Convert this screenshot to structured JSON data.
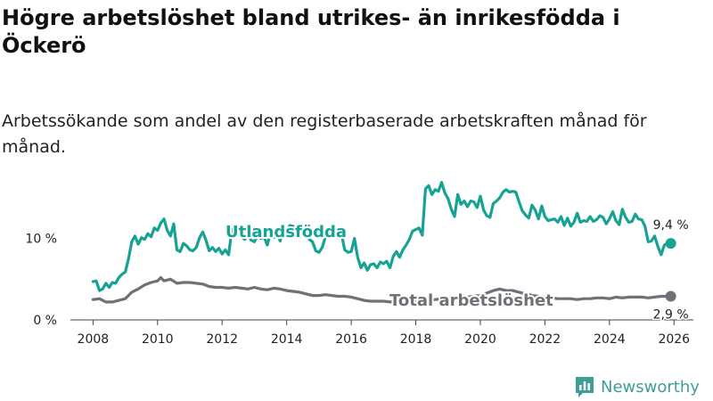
{
  "chart_data": {
    "type": "line",
    "title": "Högre arbetslöshet bland utrikes- än inrikesfödda i Öckerö",
    "subtitle": "Arbetssökande som andel av den registerbaserade arbetskraften månad för månad.",
    "x_ticks": [
      "2008",
      "2010",
      "2012",
      "2014",
      "2016",
      "2018",
      "2020",
      "2022",
      "2024",
      "2026"
    ],
    "y_ticks": [
      "0 %",
      "10 %"
    ],
    "xlim": [
      2007.3,
      2026.6
    ],
    "ylim": [
      0,
      18.5
    ],
    "grid": false,
    "series": [
      {
        "name": "Utlandsfödda",
        "label": "Utlandsfödda",
        "end_label": "9,4 %",
        "color": "#16a394",
        "points": [
          [
            2008.0,
            4.7
          ],
          [
            2008.1,
            4.8
          ],
          [
            2008.2,
            3.6
          ],
          [
            2008.3,
            3.8
          ],
          [
            2008.4,
            4.5
          ],
          [
            2008.5,
            4.0
          ],
          [
            2008.6,
            4.6
          ],
          [
            2008.7,
            4.5
          ],
          [
            2008.8,
            5.2
          ],
          [
            2008.9,
            5.6
          ],
          [
            2009.0,
            5.9
          ],
          [
            2009.1,
            7.5
          ],
          [
            2009.2,
            9.6
          ],
          [
            2009.3,
            10.3
          ],
          [
            2009.4,
            9.3
          ],
          [
            2009.5,
            10.1
          ],
          [
            2009.6,
            9.9
          ],
          [
            2009.7,
            10.6
          ],
          [
            2009.8,
            10.2
          ],
          [
            2009.9,
            11.3
          ],
          [
            2010.0,
            11.0
          ],
          [
            2010.1,
            11.9
          ],
          [
            2010.2,
            12.4
          ],
          [
            2010.3,
            11.0
          ],
          [
            2010.4,
            10.3
          ],
          [
            2010.5,
            11.8
          ],
          [
            2010.6,
            8.6
          ],
          [
            2010.7,
            8.4
          ],
          [
            2010.8,
            9.4
          ],
          [
            2010.9,
            9.1
          ],
          [
            2011.0,
            8.6
          ],
          [
            2011.1,
            8.5
          ],
          [
            2011.2,
            8.9
          ],
          [
            2011.3,
            10.1
          ],
          [
            2011.4,
            10.8
          ],
          [
            2011.5,
            9.8
          ],
          [
            2011.6,
            8.5
          ],
          [
            2011.7,
            8.9
          ],
          [
            2011.8,
            8.4
          ],
          [
            2011.9,
            8.8
          ],
          [
            2012.0,
            8.1
          ],
          [
            2012.1,
            8.6
          ],
          [
            2012.2,
            8.0
          ],
          [
            2012.3,
            11.0
          ],
          [
            2012.4,
            11.4
          ],
          [
            2012.5,
            10.6
          ],
          [
            2012.6,
            10.2
          ],
          [
            2012.7,
            9.9
          ],
          [
            2012.8,
            10.6
          ],
          [
            2012.9,
            9.8
          ],
          [
            2013.0,
            9.6
          ],
          [
            2013.1,
            10.4
          ],
          [
            2013.2,
            10.0
          ],
          [
            2013.3,
            10.2
          ],
          [
            2013.4,
            9.2
          ],
          [
            2013.5,
            10.7
          ],
          [
            2013.6,
            10.1
          ],
          [
            2013.7,
            10.5
          ],
          [
            2013.8,
            9.7
          ],
          [
            2013.9,
            11.5
          ],
          [
            2014.0,
            10.9
          ],
          [
            2014.1,
            11.6
          ],
          [
            2014.2,
            11.5
          ],
          [
            2014.3,
            10.2
          ],
          [
            2014.4,
            11.6
          ],
          [
            2014.5,
            11.4
          ],
          [
            2014.6,
            11.6
          ],
          [
            2014.7,
            9.9
          ],
          [
            2014.8,
            9.6
          ],
          [
            2014.9,
            8.5
          ],
          [
            2015.0,
            8.3
          ],
          [
            2015.1,
            8.9
          ],
          [
            2015.2,
            10.2
          ],
          [
            2015.3,
            10.5
          ],
          [
            2015.4,
            11.5
          ],
          [
            2015.5,
            11.1
          ],
          [
            2015.6,
            10.1
          ],
          [
            2015.7,
            10.5
          ],
          [
            2015.8,
            8.6
          ],
          [
            2015.9,
            8.3
          ],
          [
            2016.0,
            8.4
          ],
          [
            2016.1,
            10.0
          ],
          [
            2016.2,
            7.7
          ],
          [
            2016.3,
            6.4
          ],
          [
            2016.4,
            7.0
          ],
          [
            2016.5,
            6.1
          ],
          [
            2016.6,
            6.8
          ],
          [
            2016.7,
            6.9
          ],
          [
            2016.8,
            6.4
          ],
          [
            2016.9,
            7.1
          ],
          [
            2017.0,
            6.9
          ],
          [
            2017.1,
            7.2
          ],
          [
            2017.2,
            6.4
          ],
          [
            2017.3,
            7.8
          ],
          [
            2017.4,
            8.4
          ],
          [
            2017.5,
            7.7
          ],
          [
            2017.6,
            8.6
          ],
          [
            2017.7,
            9.2
          ],
          [
            2017.8,
            9.9
          ],
          [
            2017.9,
            10.9
          ],
          [
            2018.0,
            11.1
          ],
          [
            2018.1,
            11.3
          ],
          [
            2018.2,
            10.4
          ],
          [
            2018.3,
            16.1
          ],
          [
            2018.4,
            16.5
          ],
          [
            2018.5,
            15.4
          ],
          [
            2018.6,
            16.0
          ],
          [
            2018.7,
            15.8
          ],
          [
            2018.8,
            16.9
          ],
          [
            2018.9,
            15.6
          ],
          [
            2019.0,
            14.9
          ],
          [
            2019.1,
            13.6
          ],
          [
            2019.2,
            12.7
          ],
          [
            2019.3,
            15.4
          ],
          [
            2019.4,
            14.2
          ],
          [
            2019.5,
            14.6
          ],
          [
            2019.6,
            13.9
          ],
          [
            2019.7,
            14.6
          ],
          [
            2019.8,
            14.5
          ],
          [
            2019.9,
            13.8
          ],
          [
            2020.0,
            15.2
          ],
          [
            2020.1,
            13.5
          ],
          [
            2020.2,
            12.8
          ],
          [
            2020.3,
            12.6
          ],
          [
            2020.4,
            14.3
          ],
          [
            2020.5,
            14.6
          ],
          [
            2020.6,
            15.0
          ],
          [
            2020.7,
            15.7
          ],
          [
            2020.8,
            16.0
          ],
          [
            2020.9,
            15.7
          ],
          [
            2021.0,
            15.8
          ],
          [
            2021.1,
            15.7
          ],
          [
            2021.2,
            14.5
          ],
          [
            2021.3,
            13.4
          ],
          [
            2021.4,
            12.9
          ],
          [
            2021.5,
            12.5
          ],
          [
            2021.6,
            14.1
          ],
          [
            2021.7,
            13.5
          ],
          [
            2021.8,
            12.4
          ],
          [
            2021.9,
            14.0
          ],
          [
            2022.0,
            12.7
          ],
          [
            2022.1,
            12.2
          ],
          [
            2022.2,
            12.3
          ],
          [
            2022.3,
            12.4
          ],
          [
            2022.4,
            12.0
          ],
          [
            2022.5,
            12.7
          ],
          [
            2022.6,
            11.6
          ],
          [
            2022.7,
            12.5
          ],
          [
            2022.8,
            11.5
          ],
          [
            2022.9,
            12.0
          ],
          [
            2023.0,
            13.1
          ],
          [
            2023.1,
            12.0
          ],
          [
            2023.2,
            12.2
          ],
          [
            2023.3,
            12.1
          ],
          [
            2023.4,
            12.7
          ],
          [
            2023.5,
            12.1
          ],
          [
            2023.6,
            12.3
          ],
          [
            2023.7,
            12.8
          ],
          [
            2023.8,
            12.6
          ],
          [
            2023.9,
            11.8
          ],
          [
            2024.0,
            12.4
          ],
          [
            2024.1,
            13.3
          ],
          [
            2024.2,
            12.2
          ],
          [
            2024.3,
            11.7
          ],
          [
            2024.4,
            13.6
          ],
          [
            2024.5,
            12.6
          ],
          [
            2024.6,
            12.0
          ],
          [
            2024.7,
            12.1
          ],
          [
            2024.8,
            13.0
          ],
          [
            2024.9,
            12.4
          ],
          [
            2025.0,
            12.3
          ],
          [
            2025.1,
            11.5
          ],
          [
            2025.2,
            9.6
          ],
          [
            2025.3,
            9.7
          ],
          [
            2025.4,
            10.3
          ],
          [
            2025.5,
            9.0
          ],
          [
            2025.6,
            8.0
          ],
          [
            2025.7,
            9.2
          ],
          [
            2025.8,
            9.4
          ],
          [
            2025.9,
            9.4
          ]
        ]
      },
      {
        "name": "Total arbetslöshet",
        "label": "Total arbetslöshet",
        "end_label": "2,9 %",
        "color": "#707078",
        "points": [
          [
            2008.0,
            2.5
          ],
          [
            2008.2,
            2.6
          ],
          [
            2008.4,
            2.2
          ],
          [
            2008.6,
            2.2
          ],
          [
            2008.8,
            2.4
          ],
          [
            2009.0,
            2.6
          ],
          [
            2009.2,
            3.4
          ],
          [
            2009.4,
            3.8
          ],
          [
            2009.6,
            4.3
          ],
          [
            2009.8,
            4.6
          ],
          [
            2010.0,
            4.8
          ],
          [
            2010.1,
            5.2
          ],
          [
            2010.2,
            4.8
          ],
          [
            2010.4,
            5.0
          ],
          [
            2010.6,
            4.5
          ],
          [
            2010.8,
            4.6
          ],
          [
            2011.0,
            4.6
          ],
          [
            2011.2,
            4.5
          ],
          [
            2011.4,
            4.4
          ],
          [
            2011.6,
            4.1
          ],
          [
            2011.8,
            4.0
          ],
          [
            2012.0,
            4.0
          ],
          [
            2012.2,
            3.9
          ],
          [
            2012.4,
            4.0
          ],
          [
            2012.6,
            3.9
          ],
          [
            2012.8,
            3.8
          ],
          [
            2013.0,
            4.0
          ],
          [
            2013.2,
            3.8
          ],
          [
            2013.4,
            3.7
          ],
          [
            2013.6,
            3.9
          ],
          [
            2013.8,
            3.8
          ],
          [
            2014.0,
            3.6
          ],
          [
            2014.2,
            3.5
          ],
          [
            2014.4,
            3.4
          ],
          [
            2014.6,
            3.2
          ],
          [
            2014.8,
            3.0
          ],
          [
            2015.0,
            3.0
          ],
          [
            2015.2,
            3.1
          ],
          [
            2015.4,
            3.0
          ],
          [
            2015.6,
            2.9
          ],
          [
            2015.8,
            2.9
          ],
          [
            2016.0,
            2.8
          ],
          [
            2016.2,
            2.6
          ],
          [
            2016.4,
            2.4
          ],
          [
            2016.6,
            2.3
          ],
          [
            2016.8,
            2.3
          ],
          [
            2017.0,
            2.3
          ],
          [
            2017.2,
            2.2
          ],
          [
            2017.4,
            2.3
          ],
          [
            2017.6,
            2.2
          ],
          [
            2017.8,
            2.3
          ],
          [
            2018.0,
            2.4
          ],
          [
            2018.2,
            2.4
          ],
          [
            2018.4,
            2.4
          ],
          [
            2018.6,
            2.5
          ],
          [
            2018.8,
            2.6
          ],
          [
            2019.0,
            2.6
          ],
          [
            2019.2,
            2.7
          ],
          [
            2019.4,
            2.8
          ],
          [
            2019.6,
            2.8
          ],
          [
            2019.8,
            2.9
          ],
          [
            2020.0,
            3.0
          ],
          [
            2020.2,
            3.3
          ],
          [
            2020.4,
            3.6
          ],
          [
            2020.6,
            3.8
          ],
          [
            2020.8,
            3.6
          ],
          [
            2021.0,
            3.6
          ],
          [
            2021.2,
            3.4
          ],
          [
            2021.4,
            3.2
          ],
          [
            2021.6,
            3.0
          ],
          [
            2021.8,
            2.9
          ],
          [
            2022.0,
            2.8
          ],
          [
            2022.2,
            2.7
          ],
          [
            2022.4,
            2.6
          ],
          [
            2022.6,
            2.6
          ],
          [
            2022.8,
            2.6
          ],
          [
            2023.0,
            2.5
          ],
          [
            2023.2,
            2.6
          ],
          [
            2023.4,
            2.6
          ],
          [
            2023.6,
            2.7
          ],
          [
            2023.8,
            2.7
          ],
          [
            2024.0,
            2.6
          ],
          [
            2024.2,
            2.8
          ],
          [
            2024.4,
            2.7
          ],
          [
            2024.6,
            2.8
          ],
          [
            2024.8,
            2.8
          ],
          [
            2025.0,
            2.8
          ],
          [
            2025.2,
            2.7
          ],
          [
            2025.4,
            2.8
          ],
          [
            2025.6,
            2.9
          ],
          [
            2025.8,
            2.9
          ],
          [
            2025.9,
            2.9
          ]
        ]
      }
    ]
  },
  "branding": {
    "name": "Newsworthy"
  }
}
